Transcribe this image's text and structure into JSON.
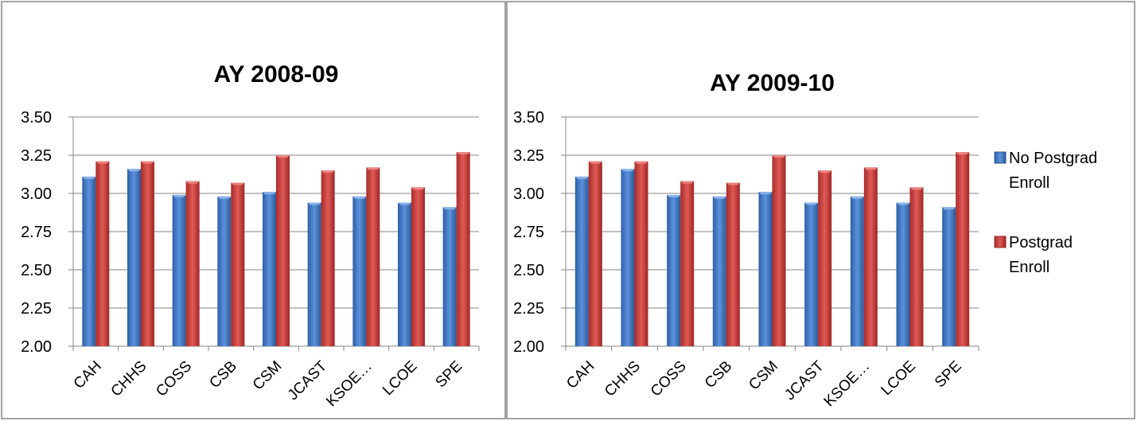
{
  "colors": {
    "background": "#ffffff",
    "border": "#868686",
    "gridline": "#868686",
    "axis": "#868686",
    "series_1": "#3c72c4",
    "series_2": "#c23b37"
  },
  "legend_placement": "right",
  "chart_data": [
    {
      "type": "bar",
      "title": "AY 2008-09",
      "categories": [
        "CAH",
        "CHHS",
        "COSS",
        "CSB",
        "CSM",
        "JCAST",
        "KSOE…",
        "LCOE",
        "SPE"
      ],
      "series": [
        {
          "name": "No Postgrad Enroll",
          "values": [
            3.11,
            3.16,
            2.99,
            2.98,
            3.01,
            2.94,
            2.98,
            2.94,
            2.91
          ]
        },
        {
          "name": "Postgrad Enroll",
          "values": [
            3.21,
            3.21,
            3.08,
            3.07,
            3.25,
            3.15,
            3.17,
            3.04,
            3.27
          ]
        }
      ],
      "ylim": [
        2.0,
        3.5
      ],
      "yticks": [
        "2.00",
        "2.25",
        "2.50",
        "2.75",
        "3.00",
        "3.25",
        "3.50"
      ],
      "grid": true,
      "legend": false
    },
    {
      "type": "bar",
      "title": "AY 2009-10",
      "categories": [
        "CAH",
        "CHHS",
        "COSS",
        "CSB",
        "CSM",
        "JCAST",
        "KSOE…",
        "LCOE",
        "SPE"
      ],
      "series": [
        {
          "name": "No Postgrad Enroll",
          "values": [
            3.11,
            3.16,
            2.99,
            2.98,
            3.01,
            2.94,
            2.98,
            2.94,
            2.91
          ]
        },
        {
          "name": "Postgrad Enroll",
          "values": [
            3.21,
            3.21,
            3.08,
            3.07,
            3.25,
            3.15,
            3.17,
            3.04,
            3.27
          ]
        }
      ],
      "ylim": [
        2.0,
        3.5
      ],
      "yticks": [
        "2.00",
        "2.25",
        "2.50",
        "2.75",
        "3.00",
        "3.25",
        "3.50"
      ],
      "grid": true,
      "legend": true,
      "legend_lines": [
        [
          "No Postgrad",
          "Enroll"
        ],
        [
          "Postgrad",
          "Enroll"
        ]
      ]
    }
  ]
}
